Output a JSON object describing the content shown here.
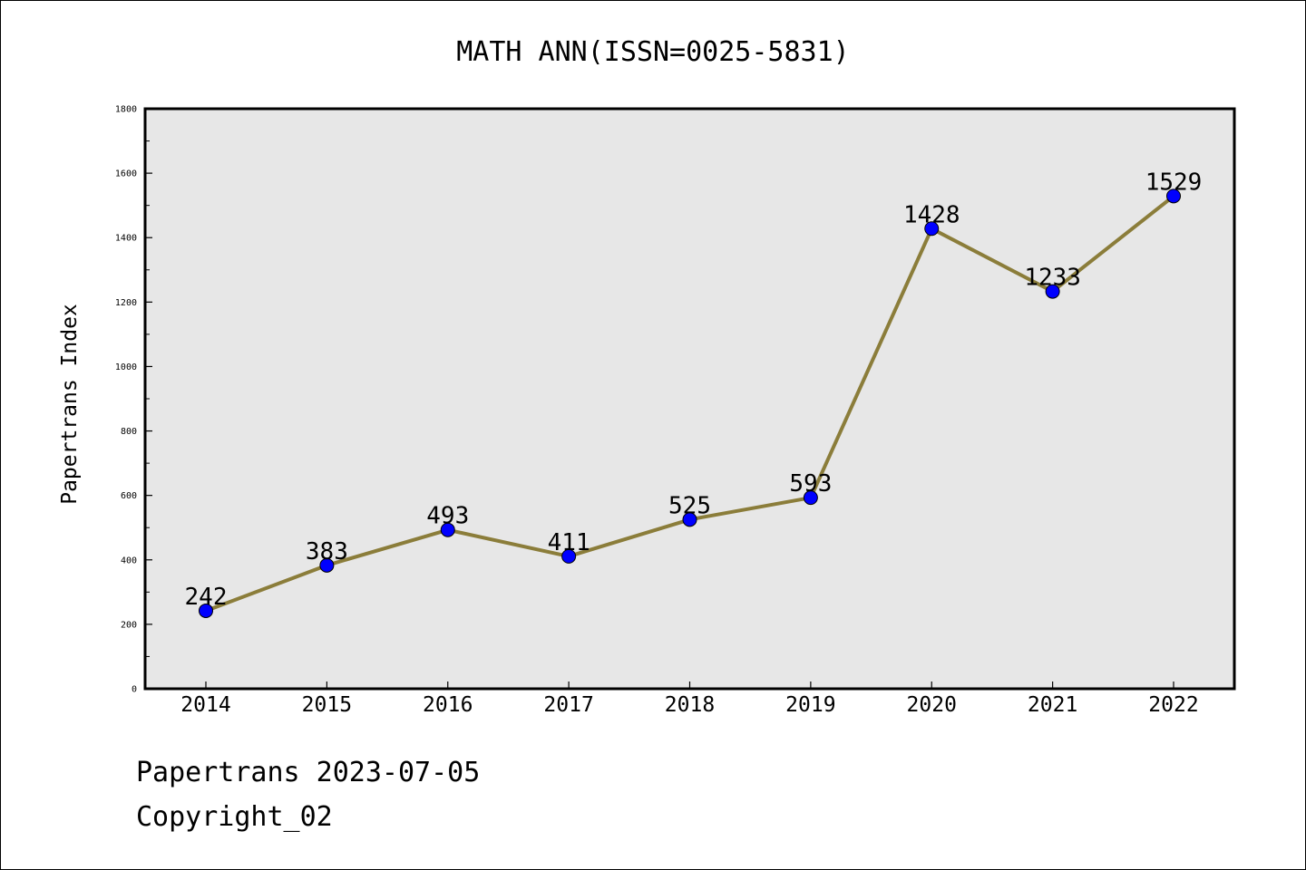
{
  "chart_data": {
    "type": "line",
    "title": "MATH ANN(ISSN=0025-5831)",
    "xlabel": "",
    "ylabel": "Papertrans Index",
    "x": [
      "2014",
      "2015",
      "2016",
      "2017",
      "2018",
      "2019",
      "2020",
      "2021",
      "2022"
    ],
    "series": [
      {
        "values": [
          242,
          383,
          493,
          411,
          525,
          593,
          1428,
          1233,
          1529
        ],
        "color": "#8b7d3a",
        "marker_color": "#0000ff"
      }
    ],
    "data_labels": [
      "242",
      "383",
      "493",
      "411",
      "525",
      "593",
      "1428",
      "1233",
      "1529"
    ],
    "ylim": [
      0,
      1800
    ],
    "y_ticks": [
      "0",
      "200",
      "400",
      "600",
      "800",
      "1000",
      "1200",
      "1400",
      "1600",
      "1800"
    ],
    "plot_background": "#e7e7e7",
    "grid": false,
    "legend": "none"
  },
  "footer": {
    "date_text": "Papertrans 2023-07-05",
    "copyright_text": "Copyright_02"
  }
}
